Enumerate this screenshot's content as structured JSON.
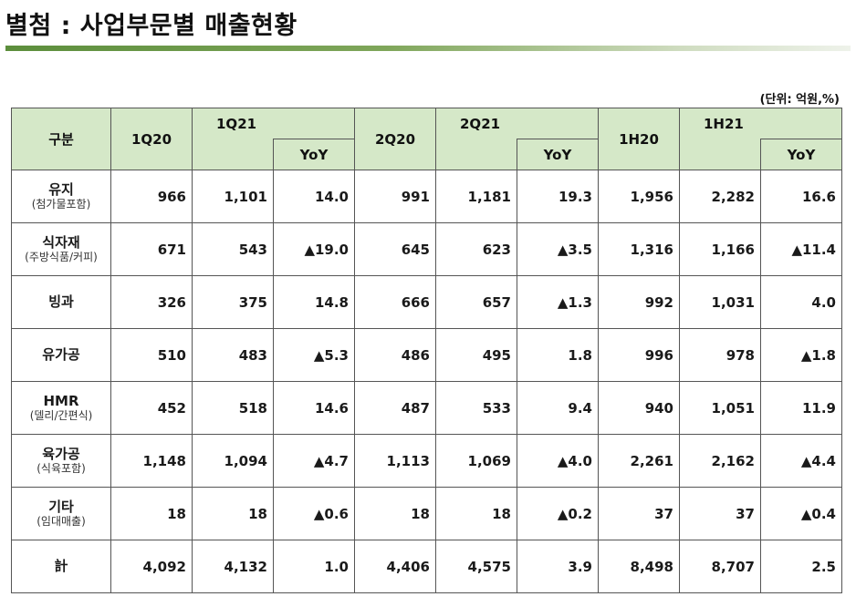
{
  "title": "별첨 : 사업부문별 매출현황",
  "unit": "(단위: 억원,%)",
  "header": {
    "category": "구분",
    "periods": [
      "1Q20",
      "1Q21",
      "2Q20",
      "2Q21",
      "1H20",
      "1H21"
    ],
    "yoy": "YoY"
  },
  "rows": [
    {
      "name": "유지",
      "sub": "(첨가물포함)",
      "v": [
        "966",
        "1,101",
        "14.0",
        "991",
        "1,181",
        "19.3",
        "1,956",
        "2,282",
        "16.6"
      ]
    },
    {
      "name": "식자재",
      "sub": "(주방식품/커피)",
      "v": [
        "671",
        "543",
        "▲19.0",
        "645",
        "623",
        "▲3.5",
        "1,316",
        "1,166",
        "▲11.4"
      ]
    },
    {
      "name": "빙과",
      "sub": "",
      "v": [
        "326",
        "375",
        "14.8",
        "666",
        "657",
        "▲1.3",
        "992",
        "1,031",
        "4.0"
      ]
    },
    {
      "name": "유가공",
      "sub": "",
      "v": [
        "510",
        "483",
        "▲5.3",
        "486",
        "495",
        "1.8",
        "996",
        "978",
        "▲1.8"
      ]
    },
    {
      "name": "HMR",
      "sub": "(델리/간편식)",
      "v": [
        "452",
        "518",
        "14.6",
        "487",
        "533",
        "9.4",
        "940",
        "1,051",
        "11.9"
      ]
    },
    {
      "name": "육가공",
      "sub": "(식육포함)",
      "v": [
        "1,148",
        "1,094",
        "▲4.7",
        "1,113",
        "1,069",
        "▲4.0",
        "2,261",
        "2,162",
        "▲4.4"
      ]
    },
    {
      "name": "기타",
      "sub": "(임대매출)",
      "v": [
        "18",
        "18",
        "▲0.6",
        "18",
        "18",
        "▲0.2",
        "37",
        "37",
        "▲0.4"
      ]
    },
    {
      "name": "計",
      "sub": "",
      "v": [
        "4,092",
        "4,132",
        "1.0",
        "4,406",
        "4,575",
        "3.9",
        "8,498",
        "8,707",
        "2.5"
      ]
    }
  ]
}
